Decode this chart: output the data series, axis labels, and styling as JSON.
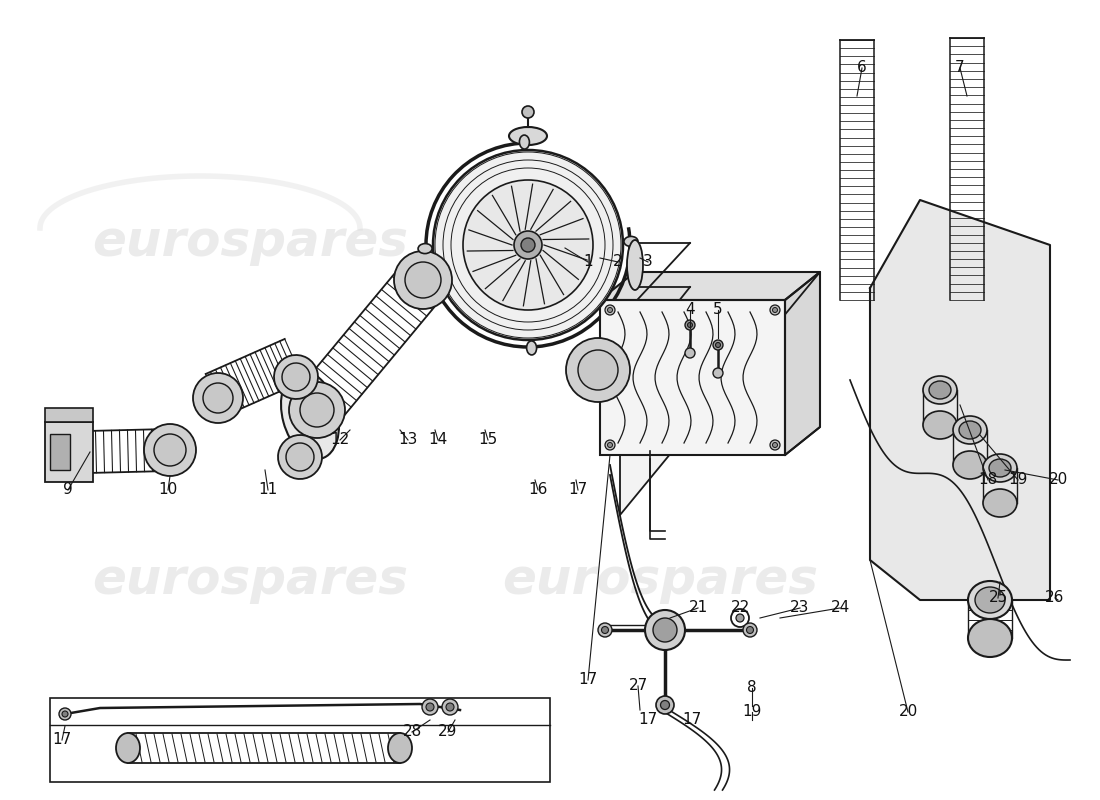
{
  "background_color": "#ffffff",
  "watermark_text": "eurospares",
  "watermark_color": "#cccccc",
  "line_color": "#1a1a1a",
  "labels": [
    [
      "1",
      588,
      262
    ],
    [
      "2",
      618,
      262
    ],
    [
      "3",
      648,
      262
    ],
    [
      "4",
      690,
      310
    ],
    [
      "5",
      718,
      310
    ],
    [
      "6",
      862,
      68
    ],
    [
      "7",
      960,
      68
    ],
    [
      "8",
      752,
      688
    ],
    [
      "9",
      68,
      490
    ],
    [
      "10",
      168,
      490
    ],
    [
      "11",
      268,
      490
    ],
    [
      "12",
      340,
      440
    ],
    [
      "13",
      408,
      440
    ],
    [
      "14",
      438,
      440
    ],
    [
      "15",
      488,
      440
    ],
    [
      "16",
      538,
      490
    ],
    [
      "17",
      578,
      490
    ],
    [
      "17",
      62,
      740
    ],
    [
      "17",
      588,
      680
    ],
    [
      "17",
      648,
      720
    ],
    [
      "17",
      692,
      720
    ],
    [
      "18",
      988,
      480
    ],
    [
      "19",
      1018,
      480
    ],
    [
      "20",
      1058,
      480
    ],
    [
      "20",
      908,
      712
    ],
    [
      "21",
      698,
      608
    ],
    [
      "22",
      740,
      608
    ],
    [
      "23",
      800,
      608
    ],
    [
      "24",
      840,
      608
    ],
    [
      "25",
      998,
      598
    ],
    [
      "26",
      1055,
      598
    ],
    [
      "27",
      638,
      686
    ],
    [
      "28",
      412,
      732
    ],
    [
      "29",
      448,
      732
    ],
    [
      "19",
      752,
      712
    ]
  ],
  "label_fontsize": 11
}
